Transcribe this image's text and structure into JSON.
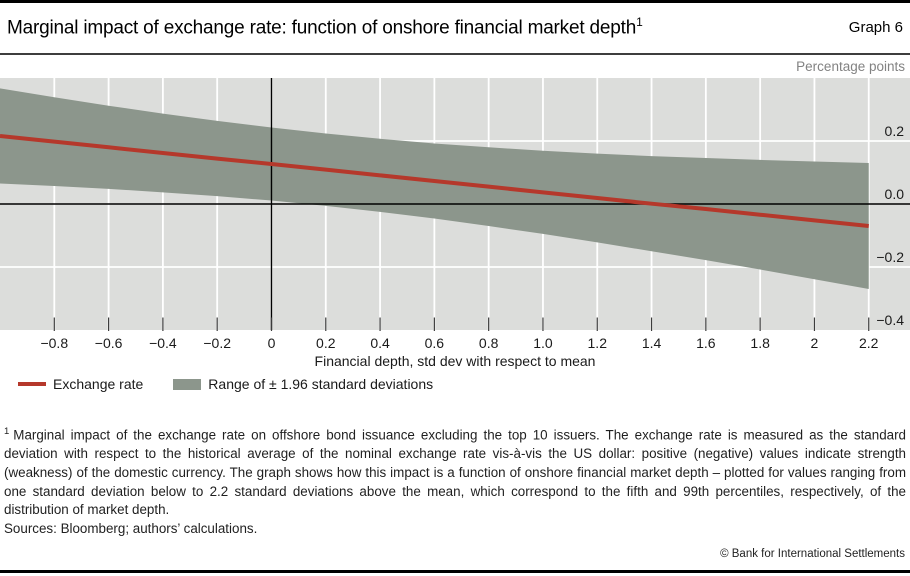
{
  "header": {
    "title": "Marginal impact of exchange rate: function of onshore financial market depth",
    "title_superscript": "1",
    "graph_label": "Graph 6"
  },
  "chart_data": {
    "type": "line",
    "title": "Marginal impact of exchange rate: function of onshore financial market depth",
    "unit_label": "Percentage points",
    "x_title": "Financial depth, std dev with respect to mean",
    "xlabel": "Financial depth, std dev with respect to mean",
    "ylabel": "Percentage points",
    "xlim": [
      -1.0,
      2.352
    ],
    "ylim": [
      -0.4,
      0.4
    ],
    "grid": true,
    "legend_position": "below",
    "colors": {
      "plot_bg": "#dcdddb",
      "grid": "#ffffff",
      "axis": "#000000",
      "tick": "#3c3c3c",
      "label": "#1a1a1a",
      "line_red": "#b5382b",
      "band_green_grey": "#8c968c"
    },
    "x_ticks": [
      {
        "v": -0.8,
        "label": "−0.8"
      },
      {
        "v": -0.6,
        "label": "−0.6"
      },
      {
        "v": -0.4,
        "label": "−0.4"
      },
      {
        "v": -0.2,
        "label": "−0.2"
      },
      {
        "v": 0.0,
        "label": "0"
      },
      {
        "v": 0.2,
        "label": "0.2"
      },
      {
        "v": 0.4,
        "label": "0.4"
      },
      {
        "v": 0.6,
        "label": "0.6"
      },
      {
        "v": 0.8,
        "label": "0.8"
      },
      {
        "v": 1.0,
        "label": "1.0"
      },
      {
        "v": 1.2,
        "label": "1.2"
      },
      {
        "v": 1.4,
        "label": "1.4"
      },
      {
        "v": 1.6,
        "label": "1.6"
      },
      {
        "v": 1.8,
        "label": "1.8"
      },
      {
        "v": 2.0,
        "label": "2"
      },
      {
        "v": 2.2,
        "label": "2.2"
      }
    ],
    "y_ticks": [
      {
        "v": 0.2,
        "label": "0.2",
        "grid": true
      },
      {
        "v": 0.0,
        "label": "0.0",
        "grid": false
      },
      {
        "v": -0.2,
        "label": "−0.2",
        "grid": true
      },
      {
        "v": -0.4,
        "label": "−0.4",
        "grid": false
      }
    ],
    "zero_lines": {
      "horizontal_at": 0.0,
      "vertical_at": 0.0
    },
    "x": [
      -1.0,
      -0.8,
      -0.6,
      -0.4,
      -0.2,
      0.0,
      0.2,
      0.4,
      0.6,
      0.8,
      1.0,
      1.2,
      1.4,
      1.6,
      1.8,
      2.0,
      2.2
    ],
    "series": [
      {
        "name": "Exchange rate",
        "kind": "line",
        "color": "#b5382b",
        "values": [
          0.216,
          0.198,
          0.18,
          0.162,
          0.144,
          0.127,
          0.109,
          0.091,
          0.073,
          0.055,
          0.037,
          0.019,
          0.001,
          -0.016,
          -0.034,
          -0.052,
          -0.07
        ]
      },
      {
        "name": "Range of ± 1.96 standard deviations",
        "kind": "band",
        "color": "#8c968c",
        "upper": [
          0.367,
          0.339,
          0.312,
          0.287,
          0.264,
          0.243,
          0.224,
          0.207,
          0.192,
          0.18,
          0.169,
          0.16,
          0.152,
          0.146,
          0.14,
          0.135,
          0.13
        ],
        "lower": [
          0.065,
          0.057,
          0.048,
          0.037,
          0.025,
          0.011,
          -0.006,
          -0.025,
          -0.046,
          -0.07,
          -0.095,
          -0.122,
          -0.15,
          -0.178,
          -0.208,
          -0.239,
          -0.27
        ]
      }
    ]
  },
  "legend": {
    "items": [
      {
        "swatch": "line",
        "color": "#b5382b",
        "label": "Exchange rate"
      },
      {
        "swatch": "box",
        "color": "#8c968c",
        "label": "Range of ± 1.96 standard deviations"
      }
    ]
  },
  "footnote": {
    "marker": "1",
    "text": "Marginal impact of the exchange rate on offshore bond issuance excluding the top 10 issuers. The exchange rate is measured as the standard deviation with respect to the historical average of the nominal exchange rate vis-à-vis the US dollar: positive (negative) values indicate strength (weakness) of the domestic currency. The graph shows how this impact is a function of onshore financial market depth – plotted for values ranging from one standard deviation below to 2.2 standard deviations above the mean, which correspond to the fifth and 99th percentiles, respectively, of the distribution of market depth."
  },
  "sources": "Sources: Bloomberg; authors’ calculations.",
  "copyright": "© Bank for International Settlements"
}
